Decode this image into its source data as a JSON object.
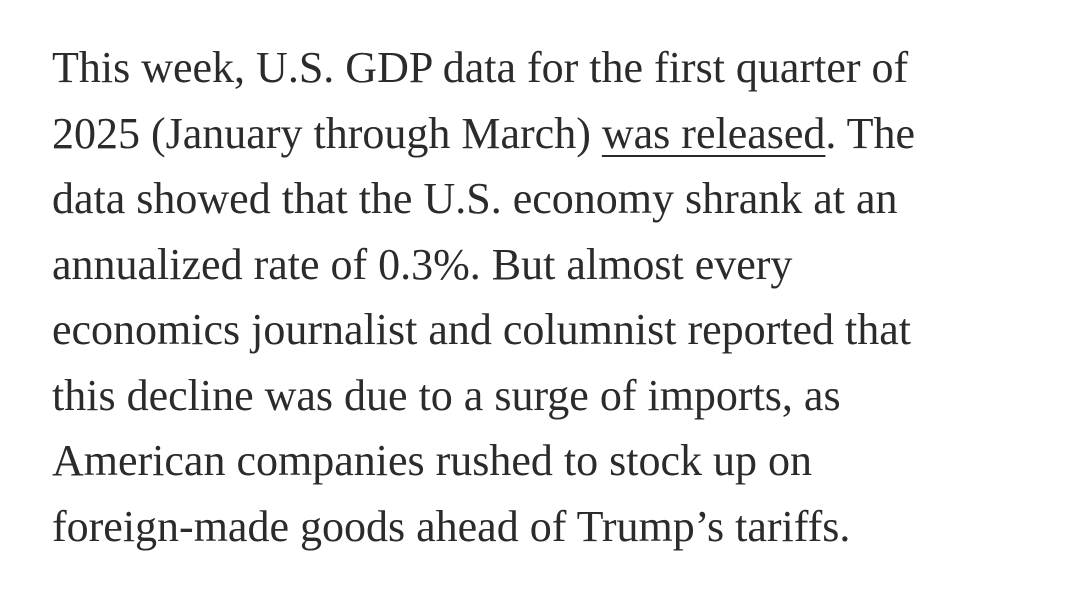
{
  "paragraph": {
    "line_1": "This week, U.S. GDP data for the first quarter of",
    "line_2_before_link": "2025 (January through March) ",
    "link_text": "was released",
    "line_2_after_link": ". The",
    "line_3": "data showed that the U.S. economy shrank at an",
    "line_4": "annualized rate of 0.3%. But almost every",
    "line_5": "economics journalist and columnist reported that",
    "line_6": "this decline was due to a surge of imports, as",
    "line_7": "American companies rushed to stock up on",
    "line_8": "foreign-made goods ahead of Trump’s tariffs."
  }
}
